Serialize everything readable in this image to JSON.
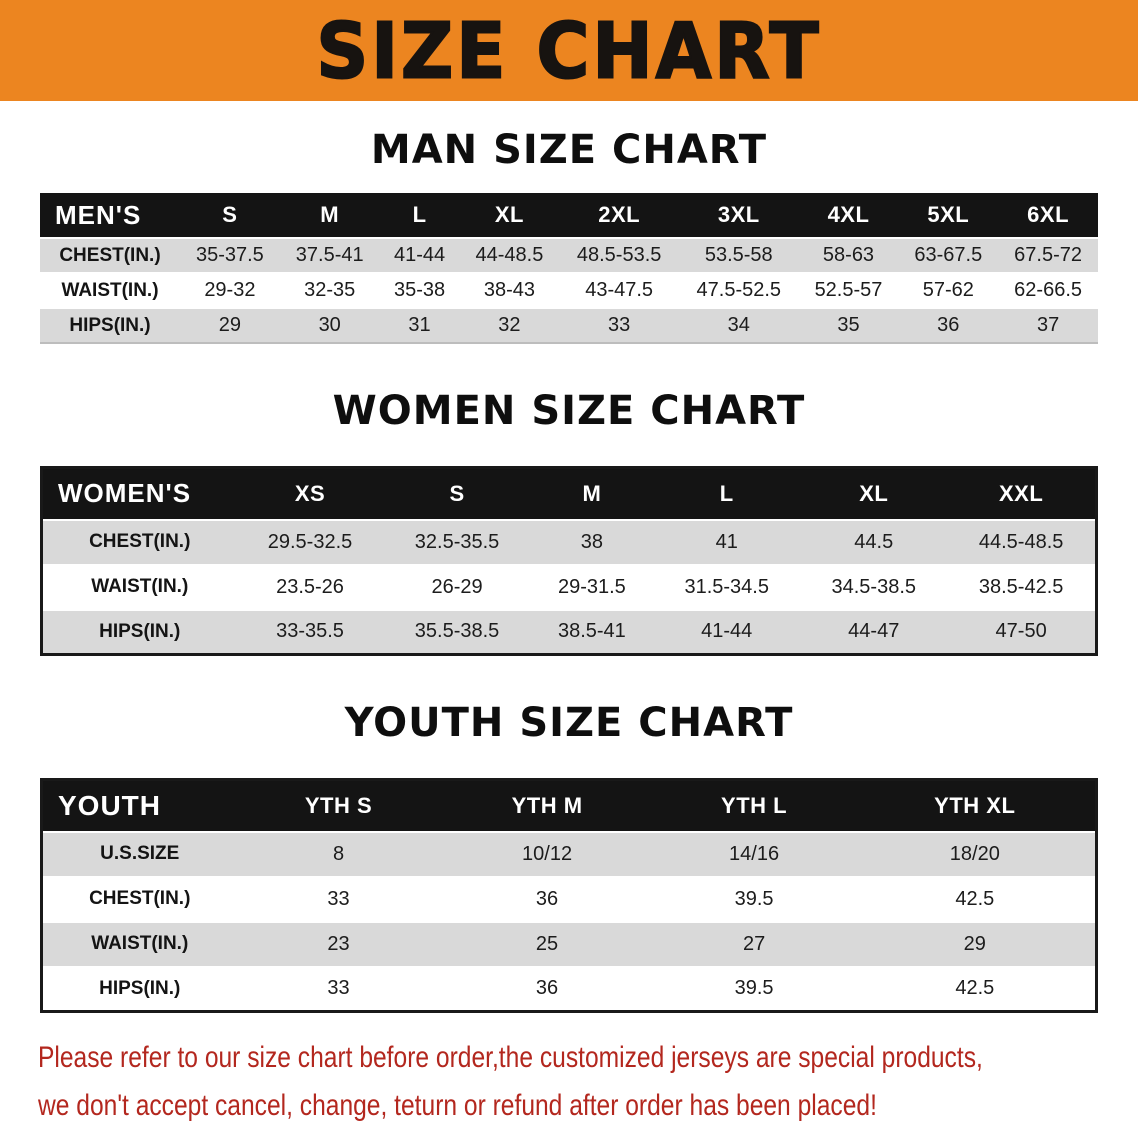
{
  "banner": {
    "title": "SIZE CHART"
  },
  "chart_data": [
    {
      "type": "table",
      "title": "MAN SIZE CHART",
      "header": [
        "MEN'S",
        "S",
        "M",
        "L",
        "XL",
        "2XL",
        "3XL",
        "4XL",
        "5XL",
        "6XL"
      ],
      "rows": [
        [
          "CHEST(IN.)",
          "35-37.5",
          "37.5-41",
          "41-44",
          "44-48.5",
          "48.5-53.5",
          "53.5-58",
          "58-63",
          "63-67.5",
          "67.5-72"
        ],
        [
          "WAIST(IN.)",
          "29-32",
          "32-35",
          "35-38",
          "38-43",
          "43-47.5",
          "47.5-52.5",
          "52.5-57",
          "57-62",
          "62-66.5"
        ],
        [
          "HIPS(IN.)",
          "29",
          "30",
          "31",
          "32",
          "33",
          "34",
          "35",
          "36",
          "37"
        ]
      ]
    },
    {
      "type": "table",
      "title": "WOMEN SIZE CHART",
      "header": [
        "WOMEN'S",
        "XS",
        "S",
        "M",
        "L",
        "XL",
        "XXL"
      ],
      "rows": [
        [
          "CHEST(IN.)",
          "29.5-32.5",
          "32.5-35.5",
          "38",
          "41",
          "44.5",
          "44.5-48.5"
        ],
        [
          "WAIST(IN.)",
          "23.5-26",
          "26-29",
          "29-31.5",
          "31.5-34.5",
          "34.5-38.5",
          "38.5-42.5"
        ],
        [
          "HIPS(IN.)",
          "33-35.5",
          "35.5-38.5",
          "38.5-41",
          "41-44",
          "44-47",
          "47-50"
        ]
      ]
    },
    {
      "type": "table",
      "title": "YOUTH SIZE CHART",
      "header": [
        "YOUTH",
        "YTH S",
        "YTH M",
        "YTH L",
        "YTH XL"
      ],
      "rows": [
        [
          "U.S.SIZE",
          "8",
          "10/12",
          "14/16",
          "18/20"
        ],
        [
          "CHEST(IN.)",
          "33",
          "36",
          "39.5",
          "42.5"
        ],
        [
          "WAIST(IN.)",
          "23",
          "25",
          "27",
          "29"
        ],
        [
          "HIPS(IN.)",
          "33",
          "36",
          "39.5",
          "42.5"
        ]
      ]
    }
  ],
  "disclaimer": {
    "lines": [
      "Please refer to our size chart before order,the customized jerseys are special products,",
      "we don't accept cancel, change, teturn or refund after order has been placed!"
    ]
  },
  "colors": {
    "banner_bg": "#ec8520",
    "banner_text": "#171310",
    "header_bg": "#141414",
    "header_text": "#ffffff",
    "row_shaded": "#d9d9d9",
    "row_plain": "#ffffff",
    "border": "#191919",
    "disclaimer_text": "#b3271e"
  }
}
